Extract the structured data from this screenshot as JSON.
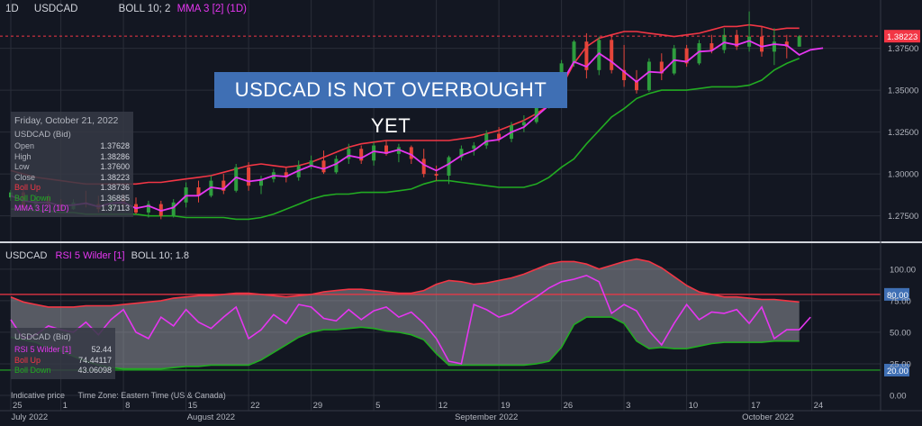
{
  "chart_data": [
    {
      "type": "candlestick",
      "symbol": "USDCAD",
      "interval": "1D",
      "indicators_label": "BOLL 10; 2",
      "ma_label": "MMA 3 [2] (1D)",
      "annotation": "USDCAD IS NOT OVERBOUGHT YET",
      "ylim": [
        1.263,
        1.392
      ],
      "yticks": [
        "1.27500",
        "1.30000",
        "1.32500",
        "1.35000",
        "1.37500"
      ],
      "last_price_label": "1.38223",
      "last_price": 1.38223,
      "x_ticks": [
        {
          "label": "25",
          "i": 0
        },
        {
          "label": "1",
          "i": 4
        },
        {
          "label": "8",
          "i": 9
        },
        {
          "label": "15",
          "i": 14
        },
        {
          "label": "22",
          "i": 19
        },
        {
          "label": "29",
          "i": 24
        },
        {
          "label": "5",
          "i": 29
        },
        {
          "label": "12",
          "i": 34
        },
        {
          "label": "19",
          "i": 39
        },
        {
          "label": "26",
          "i": 44
        },
        {
          "label": "3",
          "i": 49
        },
        {
          "label": "10",
          "i": 54
        },
        {
          "label": "17",
          "i": 59
        },
        {
          "label": "24",
          "i": 64
        }
      ],
      "months": [
        {
          "label": "July 2022",
          "i": 1.5
        },
        {
          "label": "August 2022",
          "i": 16
        },
        {
          "label": "September 2022",
          "i": 38
        },
        {
          "label": "October 2022",
          "i": 60.5
        }
      ],
      "bars": [
        [
          1.286,
          1.2905,
          1.284,
          1.289
        ],
        [
          1.289,
          1.291,
          1.278,
          1.28
        ],
        [
          1.28,
          1.288,
          1.279,
          1.286
        ],
        [
          1.286,
          1.288,
          1.28,
          1.282
        ],
        [
          1.282,
          1.285,
          1.278,
          1.279
        ],
        [
          1.279,
          1.285,
          1.2785,
          1.283
        ],
        [
          1.283,
          1.29,
          1.28,
          1.282
        ],
        [
          1.282,
          1.287,
          1.277,
          1.279
        ],
        [
          1.279,
          1.287,
          1.277,
          1.285
        ],
        [
          1.285,
          1.288,
          1.28,
          1.282
        ],
        [
          1.282,
          1.286,
          1.276,
          1.277
        ],
        [
          1.277,
          1.284,
          1.274,
          1.282
        ],
        [
          1.282,
          1.284,
          1.273,
          1.275
        ],
        [
          1.275,
          1.285,
          1.274,
          1.283
        ],
        [
          1.283,
          1.295,
          1.28,
          1.292
        ],
        [
          1.292,
          1.296,
          1.283,
          1.287
        ],
        [
          1.287,
          1.299,
          1.286,
          1.296
        ],
        [
          1.296,
          1.3,
          1.288,
          1.29
        ],
        [
          1.29,
          1.306,
          1.289,
          1.304
        ],
        [
          1.304,
          1.307,
          1.29,
          1.293
        ],
        [
          1.293,
          1.299,
          1.288,
          1.297
        ],
        [
          1.297,
          1.303,
          1.295,
          1.301
        ],
        [
          1.301,
          1.304,
          1.295,
          1.298
        ],
        [
          1.298,
          1.308,
          1.296,
          1.305
        ],
        [
          1.305,
          1.311,
          1.303,
          1.308
        ],
        [
          1.308,
          1.314,
          1.3,
          1.301
        ],
        [
          1.301,
          1.311,
          1.3,
          1.309
        ],
        [
          1.309,
          1.318,
          1.306,
          1.315
        ],
        [
          1.315,
          1.317,
          1.306,
          1.308
        ],
        [
          1.308,
          1.319,
          1.305,
          1.317
        ],
        [
          1.317,
          1.32,
          1.311,
          1.312
        ],
        [
          1.312,
          1.318,
          1.307,
          1.316
        ],
        [
          1.316,
          1.317,
          1.306,
          1.309
        ],
        [
          1.309,
          1.315,
          1.298,
          1.3
        ],
        [
          1.3,
          1.305,
          1.296,
          1.299
        ],
        [
          1.299,
          1.311,
          1.294,
          1.31
        ],
        [
          1.31,
          1.317,
          1.308,
          1.315
        ],
        [
          1.315,
          1.319,
          1.311,
          1.317
        ],
        [
          1.317,
          1.326,
          1.315,
          1.324
        ],
        [
          1.324,
          1.328,
          1.319,
          1.321
        ],
        [
          1.321,
          1.331,
          1.319,
          1.329
        ],
        [
          1.329,
          1.335,
          1.325,
          1.331
        ],
        [
          1.331,
          1.342,
          1.33,
          1.34
        ],
        [
          1.34,
          1.348,
          1.339,
          1.347
        ],
        [
          1.347,
          1.368,
          1.346,
          1.366
        ],
        [
          1.366,
          1.38,
          1.364,
          1.379
        ],
        [
          1.379,
          1.384,
          1.357,
          1.362
        ],
        [
          1.362,
          1.382,
          1.359,
          1.38
        ],
        [
          1.38,
          1.383,
          1.36,
          1.362
        ],
        [
          1.362,
          1.377,
          1.352,
          1.356
        ],
        [
          1.356,
          1.362,
          1.348,
          1.35
        ],
        [
          1.35,
          1.369,
          1.349,
          1.367
        ],
        [
          1.367,
          1.372,
          1.356,
          1.36
        ],
        [
          1.36,
          1.377,
          1.359,
          1.375
        ],
        [
          1.375,
          1.377,
          1.364,
          1.366
        ],
        [
          1.366,
          1.38,
          1.365,
          1.378
        ],
        [
          1.378,
          1.383,
          1.372,
          1.374
        ],
        [
          1.374,
          1.387,
          1.372,
          1.383
        ],
        [
          1.383,
          1.386,
          1.374,
          1.376
        ],
        [
          1.376,
          1.397,
          1.373,
          1.382
        ],
        [
          1.382,
          1.388,
          1.37,
          1.373
        ],
        [
          1.373,
          1.387,
          1.365,
          1.379
        ],
        [
          1.379,
          1.383,
          1.369,
          1.376
        ],
        [
          1.376,
          1.3829,
          1.376,
          1.3822
        ]
      ],
      "boll_up": [
        1.302,
        1.3,
        1.298,
        1.297,
        1.296,
        1.295,
        1.294,
        1.294,
        1.294,
        1.294,
        1.294,
        1.295,
        1.295,
        1.296,
        1.297,
        1.298,
        1.299,
        1.301,
        1.303,
        1.305,
        1.306,
        1.305,
        1.304,
        1.305,
        1.307,
        1.31,
        1.313,
        1.316,
        1.318,
        1.319,
        1.32,
        1.32,
        1.32,
        1.32,
        1.32,
        1.32,
        1.321,
        1.322,
        1.324,
        1.326,
        1.329,
        1.332,
        1.336,
        1.341,
        1.352,
        1.366,
        1.376,
        1.381,
        1.383,
        1.385,
        1.385,
        1.384,
        1.383,
        1.382,
        1.383,
        1.384,
        1.386,
        1.388,
        1.388,
        1.389,
        1.388,
        1.386,
        1.387,
        1.387
      ],
      "boll_dn": [
        1.279,
        1.279,
        1.278,
        1.278,
        1.277,
        1.277,
        1.276,
        1.276,
        1.276,
        1.276,
        1.276,
        1.275,
        1.275,
        1.275,
        1.274,
        1.274,
        1.274,
        1.274,
        1.273,
        1.273,
        1.274,
        1.276,
        1.279,
        1.282,
        1.285,
        1.287,
        1.288,
        1.288,
        1.289,
        1.289,
        1.289,
        1.29,
        1.291,
        1.294,
        1.296,
        1.296,
        1.295,
        1.294,
        1.293,
        1.292,
        1.292,
        1.292,
        1.294,
        1.298,
        1.304,
        1.309,
        1.318,
        1.326,
        1.334,
        1.339,
        1.345,
        1.348,
        1.35,
        1.35,
        1.35,
        1.351,
        1.352,
        1.352,
        1.352,
        1.353,
        1.356,
        1.362,
        1.366,
        1.369
      ],
      "mma": [
        1.287,
        1.284,
        1.283,
        1.283,
        1.281,
        1.2815,
        1.2825,
        1.2805,
        1.2825,
        1.283,
        1.2795,
        1.281,
        1.278,
        1.28,
        1.287,
        1.287,
        1.292,
        1.291,
        1.298,
        1.2955,
        1.2965,
        1.299,
        1.2985,
        1.302,
        1.305,
        1.303,
        1.306,
        1.311,
        1.3095,
        1.3135,
        1.3125,
        1.3145,
        1.3115,
        1.3055,
        1.302,
        1.306,
        1.311,
        1.314,
        1.3195,
        1.3205,
        1.325,
        1.328,
        1.3345,
        1.341,
        1.354,
        1.367,
        1.364,
        1.372,
        1.367,
        1.361,
        1.355,
        1.361,
        1.3605,
        1.368,
        1.367,
        1.373,
        1.3735,
        1.3785,
        1.377,
        1.3795,
        1.376,
        1.3775,
        1.3768,
        1.3711
      ],
      "legend": {
        "date": "Friday, October 21, 2022",
        "title": "USDCAD (Bid)",
        "rows": [
          {
            "label": "Open",
            "value": "1.37628",
            "color": "#b2b5be"
          },
          {
            "label": "High",
            "value": "1.38286",
            "color": "#b2b5be"
          },
          {
            "label": "Low",
            "value": "1.37600",
            "color": "#b2b5be"
          },
          {
            "label": "Close",
            "value": "1.38223",
            "color": "#b2b5be"
          },
          {
            "label": "Boll Up",
            "value": "1.38736",
            "color": "#f23645"
          },
          {
            "label": "Boll Down",
            "value": "1.36885",
            "color": "#22ab22"
          },
          {
            "label": "MMA 3 [2] (1D)",
            "value": "1.37113",
            "color": "#e536f0"
          }
        ]
      }
    },
    {
      "type": "line",
      "symbol": "USDCAD",
      "indicator_label": "RSI 5 Wilder [1]",
      "boll_label": "BOLL 10; 1.8",
      "ylim": [
        -5,
        112
      ],
      "yticks": [
        "0.00",
        "25.00",
        "50.00",
        "75.00",
        "100.00"
      ],
      "levels": [
        {
          "value": 80,
          "label": "80.00"
        },
        {
          "value": 20,
          "label": "20.00"
        }
      ],
      "rsi": [
        60,
        45,
        48,
        55,
        52,
        50,
        58,
        48,
        60,
        68,
        50,
        45,
        62,
        55,
        68,
        58,
        53,
        62,
        70,
        45,
        52,
        64,
        57,
        72,
        70,
        61,
        59,
        68,
        60,
        67,
        70,
        62,
        66,
        57,
        45,
        27,
        25,
        72,
        68,
        62,
        65,
        72,
        78,
        85,
        90,
        92,
        95,
        90,
        65,
        72,
        67,
        51,
        40,
        57,
        72,
        60,
        66,
        65,
        68,
        57,
        70,
        45,
        52,
        52
      ],
      "rsi_up": [
        78,
        74,
        72,
        70,
        70,
        70,
        71,
        71,
        71,
        72,
        73,
        74,
        75,
        77,
        78,
        79,
        79,
        80,
        81,
        81,
        80,
        79,
        78,
        79,
        80,
        82,
        83,
        84,
        84,
        83,
        82,
        81,
        81,
        83,
        88,
        91,
        90,
        88,
        89,
        91,
        93,
        96,
        100,
        104,
        106,
        106,
        104,
        100,
        103,
        106,
        108,
        106,
        101,
        94,
        87,
        82,
        80,
        78,
        78,
        77,
        76,
        76,
        75,
        74
      ],
      "rsi_dn": [
        46,
        44,
        42,
        38,
        35,
        31,
        27,
        24,
        22,
        21,
        21,
        21,
        21,
        22,
        23,
        23,
        24,
        24,
        24,
        24,
        28,
        34,
        40,
        46,
        50,
        52,
        52,
        53,
        54,
        53,
        51,
        50,
        48,
        44,
        33,
        24,
        24,
        24,
        24,
        24,
        24,
        24,
        25,
        27,
        38,
        56,
        62,
        62,
        62,
        57,
        43,
        37,
        38,
        37,
        37,
        39,
        41,
        42,
        42,
        42,
        42,
        43,
        43,
        43
      ],
      "legend": {
        "title": "USDCAD (Bid)",
        "rows": [
          {
            "label": "RSI 5 Wilder [1]",
            "value": "52.44",
            "color": "#e536f0"
          },
          {
            "label": "Boll Up",
            "value": "74.44117",
            "color": "#f23645"
          },
          {
            "label": "Boll Down",
            "value": "43.06098",
            "color": "#22ab22"
          }
        ]
      }
    }
  ],
  "footer": {
    "indicative": "Indicative price",
    "timezone": "Time Zone: Eastern Time (US & Canada)"
  },
  "colors": {
    "bull": "#26a69a",
    "candle_up": "#2e9e3e",
    "candle_down": "#e5453a",
    "boll_up": "#f23645",
    "boll_down": "#22ab22",
    "ma": "#e536f0",
    "banner": "#3f6fb4"
  }
}
